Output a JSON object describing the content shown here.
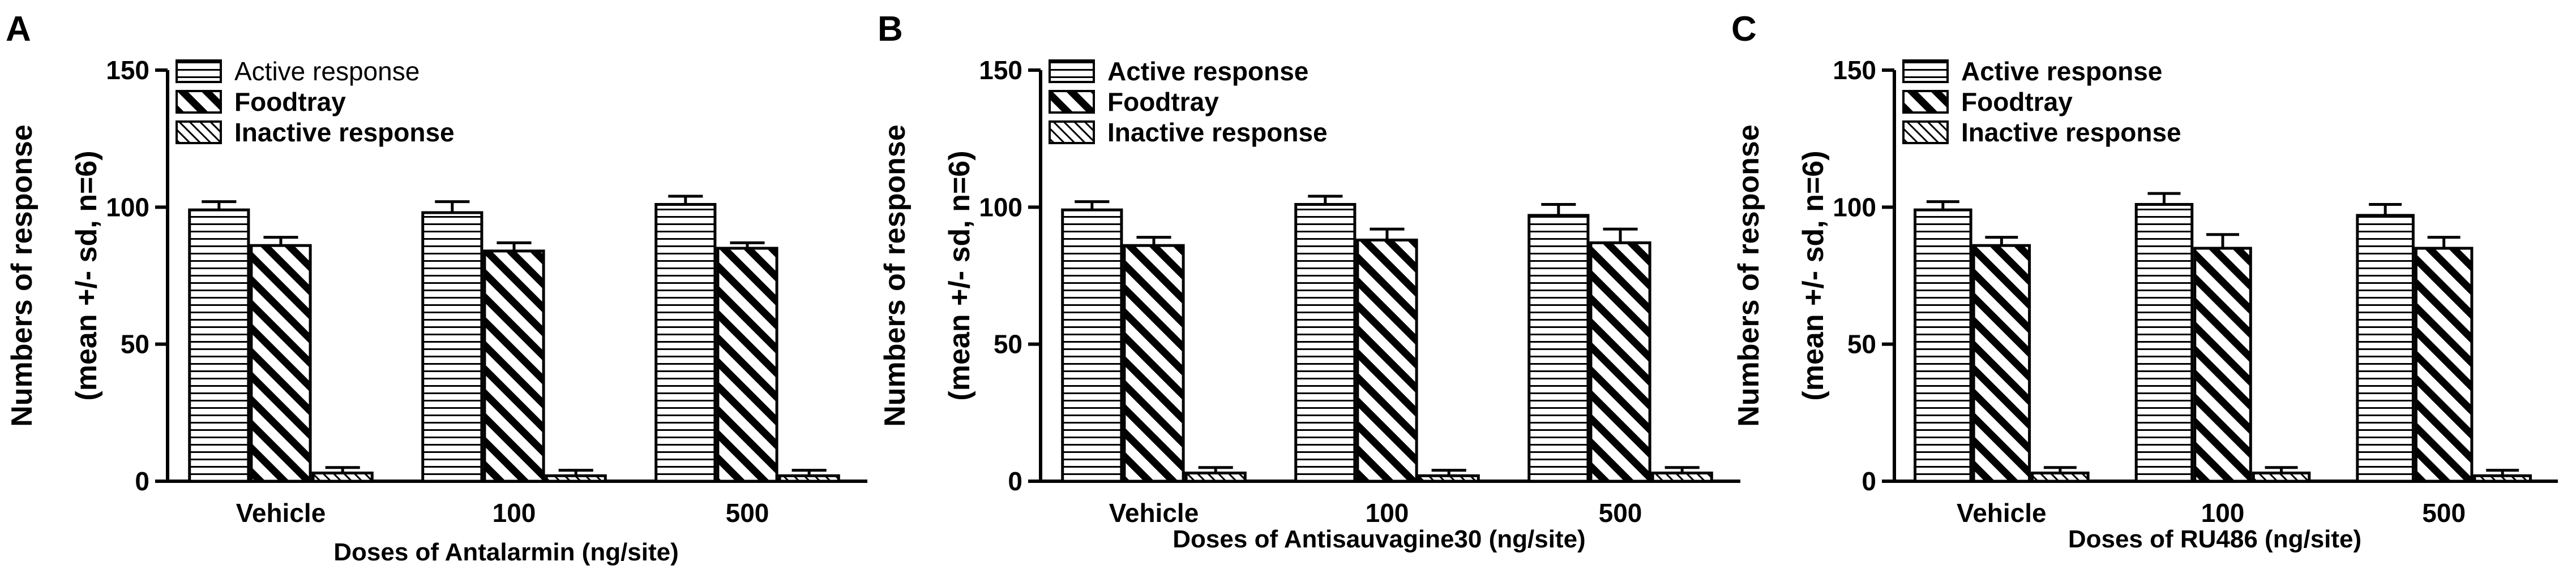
{
  "chart_data": [
    {
      "type": "bar",
      "panel": "A",
      "categories": [
        "Vehicle",
        "100",
        "500"
      ],
      "series": [
        {
          "name": "Active response",
          "values": [
            99,
            98,
            101
          ],
          "sd": [
            3,
            4,
            3
          ]
        },
        {
          "name": "Foodtray",
          "values": [
            86,
            84,
            85
          ],
          "sd": [
            3,
            3,
            2
          ]
        },
        {
          "name": "Inactive response",
          "values": [
            3,
            2,
            2
          ],
          "sd": [
            2,
            2,
            2
          ]
        }
      ],
      "ylabel": [
        "Numbers of response",
        "(mean +/- sd, n=6)"
      ],
      "xlabel": "Doses of Antalarmin (ng/site)",
      "ylim": [
        0,
        150
      ],
      "yticks": [
        0,
        50,
        100,
        150
      ],
      "legend_bold": [
        false,
        true,
        true
      ],
      "legend_placement": "top-left"
    },
    {
      "type": "bar",
      "panel": "B",
      "categories": [
        "Vehicle",
        "100",
        "500"
      ],
      "series": [
        {
          "name": "Active response",
          "values": [
            99,
            101,
            97
          ],
          "sd": [
            3,
            3,
            4
          ]
        },
        {
          "name": "Foodtray",
          "values": [
            86,
            88,
            87
          ],
          "sd": [
            3,
            4,
            5
          ]
        },
        {
          "name": "Inactive response",
          "values": [
            3,
            2,
            3
          ],
          "sd": [
            2,
            2,
            2
          ]
        }
      ],
      "ylabel": [
        "Numbers of response",
        "(mean +/- sd, n=6)"
      ],
      "xlabel": "Doses of Antisauvagine30 (ng/site)",
      "ylim": [
        0,
        150
      ],
      "yticks": [
        0,
        50,
        100,
        150
      ],
      "legend_bold": [
        true,
        true,
        true
      ],
      "legend_placement": "top-left"
    },
    {
      "type": "bar",
      "panel": "C",
      "categories": [
        "Vehicle",
        "100",
        "500"
      ],
      "series": [
        {
          "name": "Active response",
          "values": [
            99,
            101,
            97
          ],
          "sd": [
            3,
            4,
            4
          ]
        },
        {
          "name": "Foodtray",
          "values": [
            86,
            85,
            85
          ],
          "sd": [
            3,
            5,
            4
          ]
        },
        {
          "name": "Inactive response",
          "values": [
            3,
            3,
            2
          ],
          "sd": [
            2,
            2,
            2
          ]
        }
      ],
      "ylabel": [
        "Numbers of response",
        "(mean +/- sd, n=6)"
      ],
      "xlabel": "Doses of RU486 (ng/site)",
      "ylim": [
        0,
        150
      ],
      "yticks": [
        0,
        50,
        100,
        150
      ],
      "legend_bold": [
        true,
        true,
        true
      ],
      "legend_placement": "top-left"
    }
  ],
  "patterns": [
    "horizontal-lines-pattern",
    "bold-diagonal-pattern",
    "fine-diagonal-pattern"
  ],
  "colors": {
    "ink": "#000000",
    "fill": "#ffffff"
  }
}
